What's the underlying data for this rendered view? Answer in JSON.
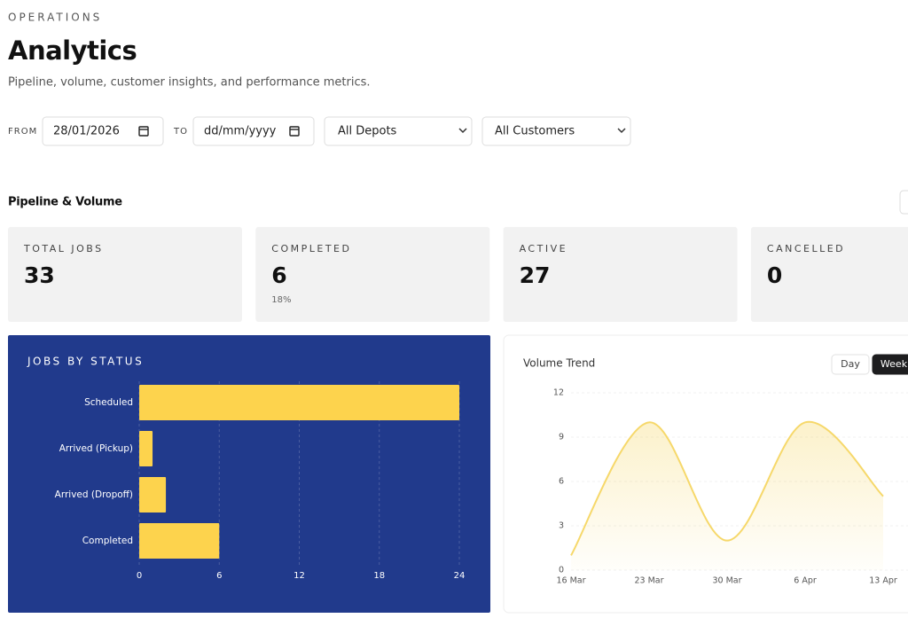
{
  "header": {
    "eyebrow": "OPERATIONS",
    "title": "Analytics",
    "subtitle": "Pipeline, volume, customer insights, and performance metrics."
  },
  "filters": {
    "from_label": "FROM",
    "from_value": "28/01/2026",
    "to_label": "TO",
    "to_value": "dd/mm/yyyy",
    "depot": "All Depots",
    "customer": "All Customers"
  },
  "section": {
    "title": "Pipeline & Volume"
  },
  "stats": [
    {
      "label": "TOTAL JOBS",
      "value": "33"
    },
    {
      "label": "COMPLETED",
      "value": "6",
      "sub": "18%"
    },
    {
      "label": "ACTIVE",
      "value": "27"
    },
    {
      "label": "CANCELLED",
      "value": "0"
    }
  ],
  "chart_data": [
    {
      "type": "hbar",
      "title": "JOBS BY STATUS",
      "categories": [
        "Scheduled",
        "Arrived (Pickup)",
        "Arrived (Dropoff)",
        "Completed"
      ],
      "values": [
        24,
        1,
        2,
        6
      ],
      "color": "#fdd34d",
      "xlim": [
        0,
        24
      ],
      "xticks": [
        0,
        6,
        12,
        18,
        24
      ],
      "grid": true
    },
    {
      "type": "line",
      "title": "Volume Trend",
      "buttons": [
        "Day",
        "Week"
      ],
      "categories": [
        "16 Mar",
        "23 Mar",
        "30 Mar",
        "6 Apr",
        "13 Apr"
      ],
      "values": [
        1,
        10,
        2,
        10,
        5
      ],
      "color": "#f6d86a",
      "ylim": [
        0,
        12
      ],
      "yticks": [
        0,
        3,
        6,
        9,
        12
      ],
      "grid": true
    }
  ]
}
